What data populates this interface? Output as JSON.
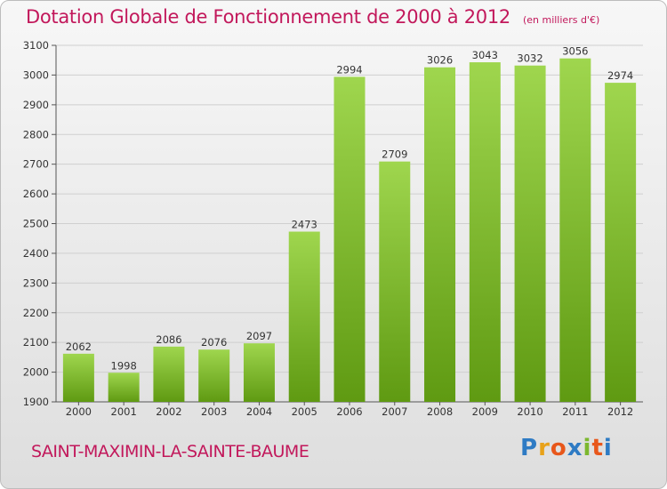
{
  "title": "Dotation Globale de Fonctionnement de 2000 à 2012",
  "unit_label": "(en milliers d'€)",
  "commune": "SAINT-MAXIMIN-LA-SAINTE-BAUME",
  "brand": {
    "letters": [
      "P",
      "r",
      "o",
      "x",
      "i",
      "t",
      "i"
    ],
    "colors": [
      "#2e7bc4",
      "#e8a21a",
      "#e8571b",
      "#2e7bc4",
      "#7cb82f",
      "#e8571b",
      "#2e7bc4"
    ]
  },
  "colors": {
    "bar_top": "#9fd64e",
    "bar_bottom": "#5f9a12",
    "title": "#c2185b",
    "grid": "#cfcfcf"
  },
  "chart_data": {
    "type": "bar",
    "title": "Dotation Globale de Fonctionnement de 2000 à 2012",
    "subtitle": "(en milliers d'€)",
    "xlabel": "",
    "ylabel": "",
    "ylim": [
      1900,
      3100
    ],
    "yticks": [
      1900,
      2000,
      2100,
      2200,
      2300,
      2400,
      2500,
      2600,
      2700,
      2800,
      2900,
      3000,
      3100
    ],
    "grid": true,
    "categories": [
      "2000",
      "2001",
      "2002",
      "2003",
      "2004",
      "2005",
      "2006",
      "2007",
      "2008",
      "2009",
      "2010",
      "2011",
      "2012"
    ],
    "values": [
      2062,
      1998,
      2086,
      2076,
      2097,
      2473,
      2994,
      2709,
      3026,
      3043,
      3032,
      3056,
      2974
    ]
  }
}
